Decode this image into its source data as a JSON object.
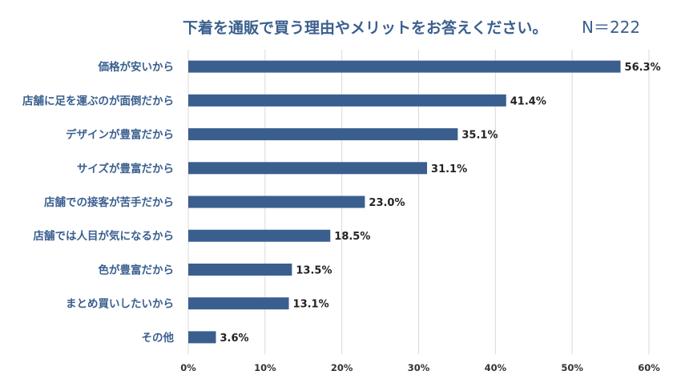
{
  "header": {
    "title": "下着を通販で買う理由やメリットをお答えください。",
    "sample_size": "N＝222"
  },
  "chart_data": {
    "type": "bar",
    "orientation": "horizontal",
    "title": "下着を通販で買う理由やメリットをお答えください。",
    "subtitle": "N＝222",
    "categories": [
      "価格が安いから",
      "店舗に足を運ぶのが面倒だから",
      "デザインが豊富だから",
      "サイズが豊富だから",
      "店舗での接客が苦手だから",
      "店舗では人目が気になるから",
      "色が豊富だから",
      "まとめ買いしたいから",
      "その他"
    ],
    "values": [
      56.3,
      41.4,
      35.1,
      31.1,
      23.0,
      18.5,
      13.5,
      13.1,
      3.6
    ],
    "value_labels": [
      "56.3%",
      "41.4%",
      "35.1%",
      "31.1%",
      "23.0%",
      "18.5%",
      "13.5%",
      "13.1%",
      "3.6%"
    ],
    "xlim": [
      0,
      60
    ],
    "xticks": [
      0,
      10,
      20,
      30,
      40,
      50,
      60
    ],
    "xtick_labels": [
      "0%",
      "10%",
      "20%",
      "30%",
      "40%",
      "50%",
      "60%"
    ],
    "grid": "vertical",
    "legend": "none",
    "bar_color": "#3a5f8f",
    "grid_color": "#d9d9d9"
  }
}
